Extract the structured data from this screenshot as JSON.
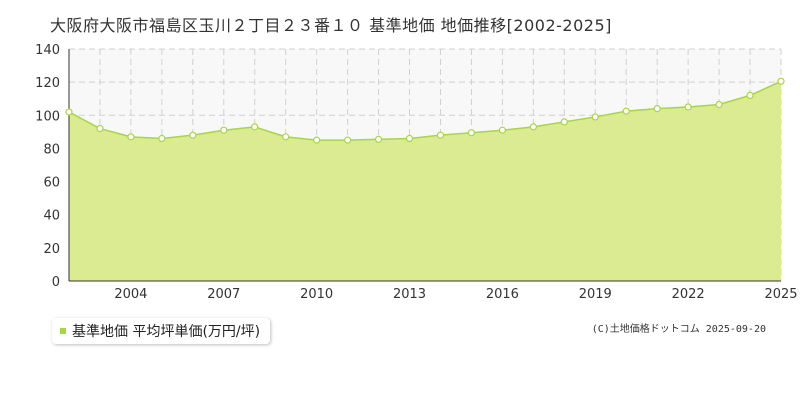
{
  "title": "大阪府大阪市福島区玉川２丁目２３番１０ 基準地価 地価推移[2002-2025]",
  "legend": {
    "label": "基準地価 平均坪単価(万円/坪)"
  },
  "copyright": "(C)土地価格ドットコム 2025-09-20",
  "colors": {
    "area_fill": "#dbeb91",
    "line": "#a8d44a",
    "point_fill": "#ffffff",
    "grid": "#d0d0d0",
    "axis": "#333333",
    "plot_background_upper": "#f8f8f8"
  },
  "chart_data": {
    "type": "area",
    "x": [
      2002,
      2003,
      2004,
      2005,
      2006,
      2007,
      2008,
      2009,
      2010,
      2011,
      2012,
      2013,
      2014,
      2015,
      2016,
      2017,
      2018,
      2019,
      2020,
      2021,
      2022,
      2023,
      2024,
      2025
    ],
    "series": [
      {
        "name": "基準地価 平均坪単価(万円/坪)",
        "values": [
          102,
          92,
          87,
          86,
          88,
          91,
          93,
          87,
          85,
          85,
          85.5,
          86,
          88,
          89.5,
          91,
          93,
          96,
          99,
          102.5,
          104,
          105,
          106.5,
          112,
          120.5
        ]
      }
    ],
    "x_ticks": [
      "2004",
      "2007",
      "2010",
      "2013",
      "2016",
      "2019",
      "2022",
      "2025"
    ],
    "y_ticks": [
      "0",
      "20",
      "40",
      "60",
      "80",
      "100",
      "120",
      "140"
    ],
    "ylim": [
      0,
      140
    ],
    "xlim": [
      2002,
      2025
    ],
    "grid": true,
    "legend_position": "bottom-left"
  }
}
